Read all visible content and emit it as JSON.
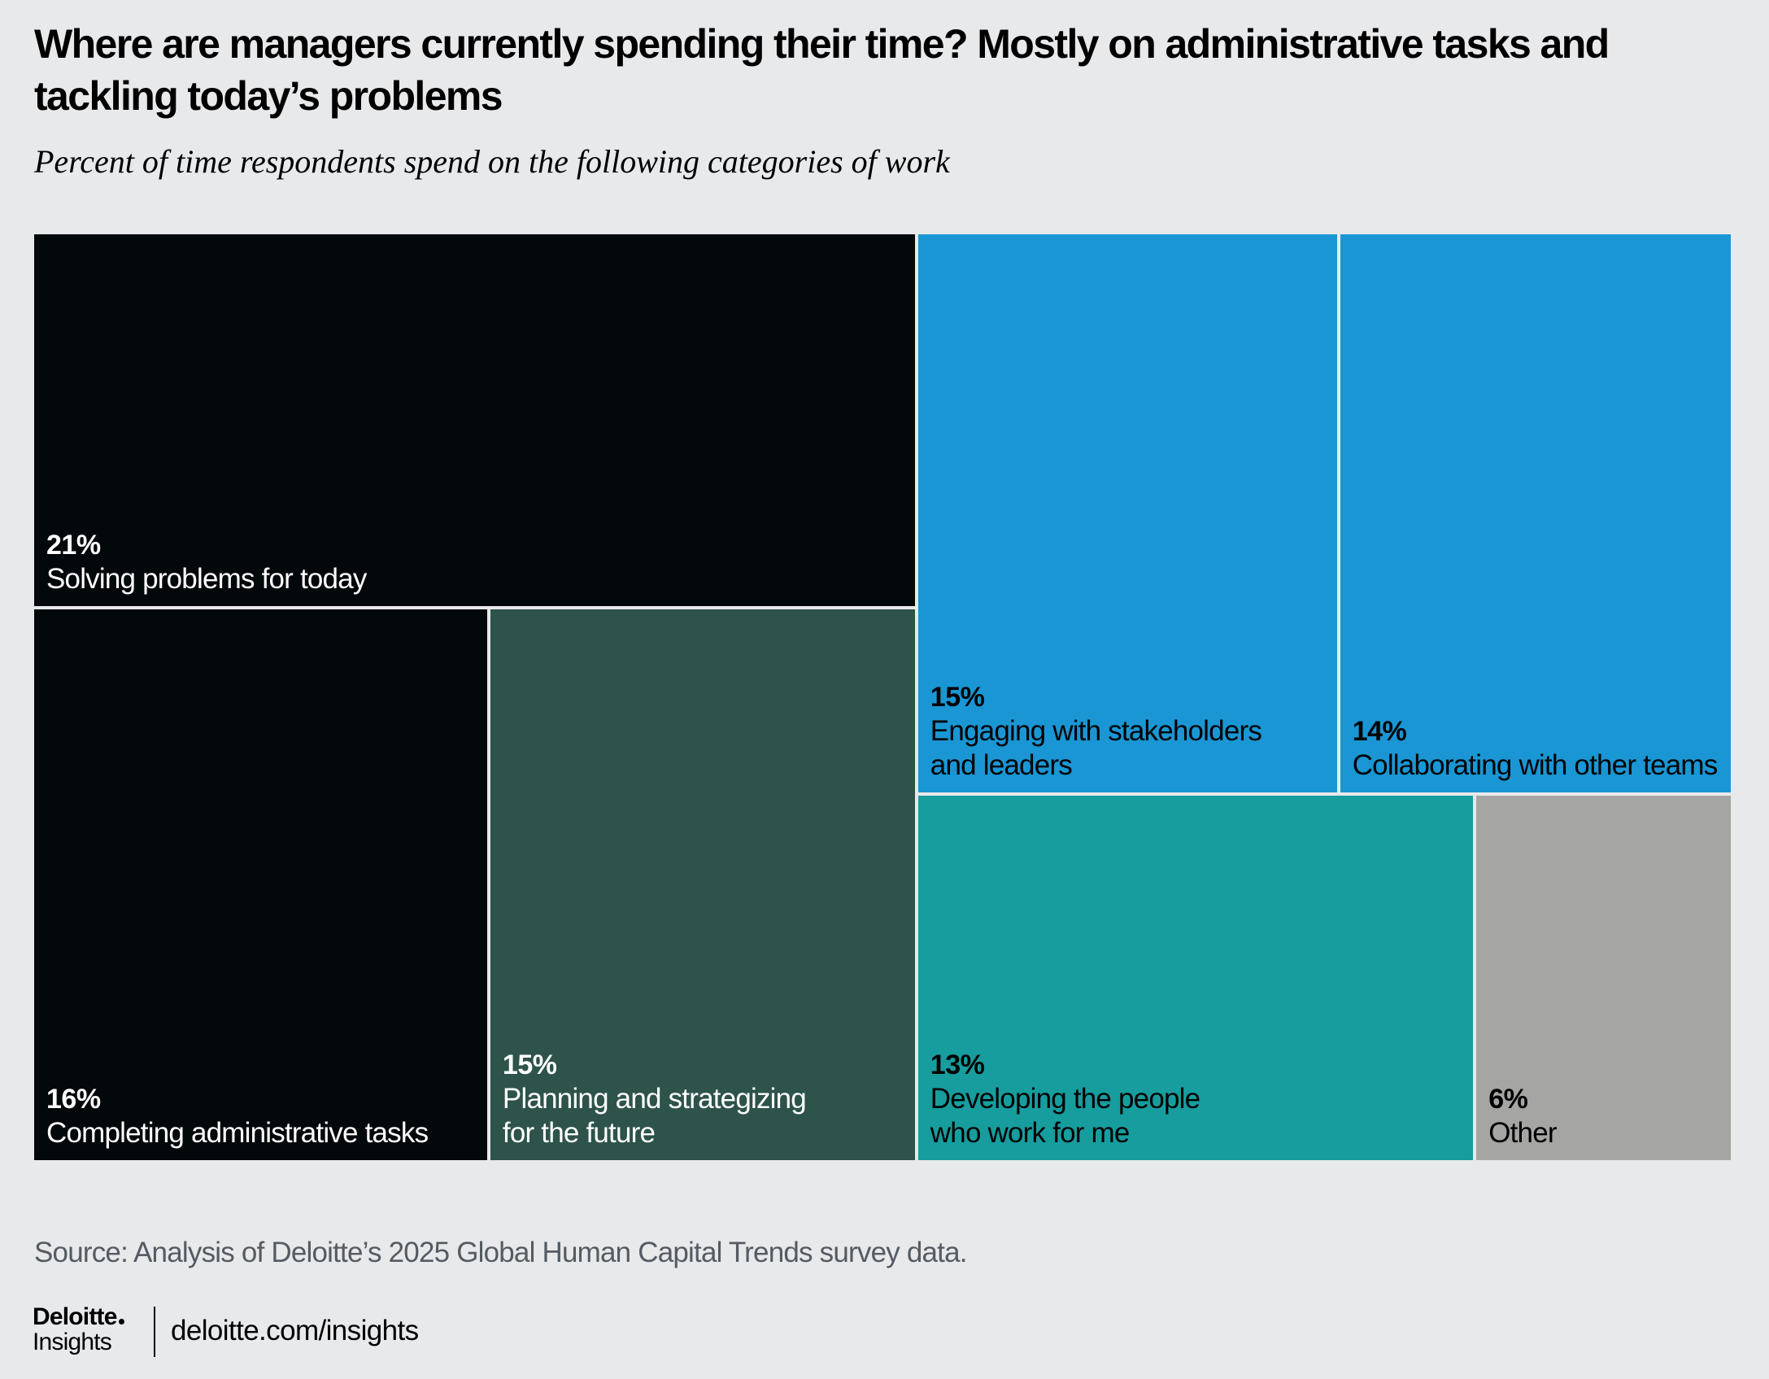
{
  "title": "Where are managers currently spending their time? Mostly on administrative tasks and tackling today’s problems",
  "subtitle": "Percent of time respondents spend on the following categories of work",
  "chart_data": {
    "type": "treemap",
    "unit": "%",
    "items": [
      {
        "label": "Solving problems for today",
        "value": 21,
        "value_label": "21%",
        "color": "#03080a",
        "text_color": "#ffffff"
      },
      {
        "label": "Completing administrative tasks",
        "value": 16,
        "value_label": "16%",
        "color": "#03080a",
        "text_color": "#ffffff"
      },
      {
        "label": "Planning and strategizing\nfor the future",
        "value": 15,
        "value_label": "15%",
        "color": "#2d534a",
        "text_color": "#ffffff"
      },
      {
        "label": "Engaging with stakeholders\nand leaders",
        "value": 15,
        "value_label": "15%",
        "color": "#1a96d4",
        "text_color": "#000000"
      },
      {
        "label": "Collaborating with other teams",
        "value": 14,
        "value_label": "14%",
        "color": "#1a96d4",
        "text_color": "#000000"
      },
      {
        "label": "Developing the people\nwho work for me",
        "value": 13,
        "value_label": "13%",
        "color": "#179d9e",
        "text_color": "#000000"
      },
      {
        "label": "Other",
        "value": 6,
        "value_label": "6%",
        "color": "#a5a5a4",
        "text_color": "#000000"
      }
    ]
  },
  "source": "Source: Analysis of Deloitte’s 2025 Global Human Capital Trends survey data.",
  "footer": {
    "brand": "Deloitte",
    "brand_sub": "Insights",
    "url": "deloitte.com/insights"
  },
  "colors": {
    "background": "#e8e9eb",
    "tile_border": "#ffffff"
  }
}
